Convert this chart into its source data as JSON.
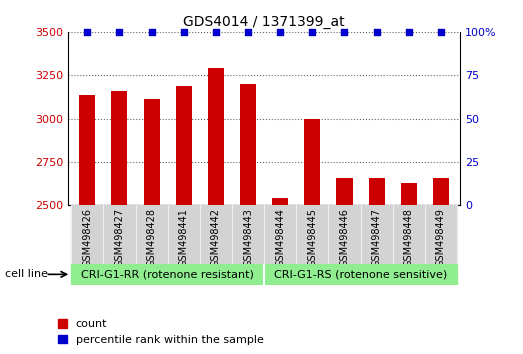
{
  "title": "GDS4014 / 1371399_at",
  "samples": [
    "GSM498426",
    "GSM498427",
    "GSM498428",
    "GSM498441",
    "GSM498442",
    "GSM498443",
    "GSM498444",
    "GSM498445",
    "GSM498446",
    "GSM498447",
    "GSM498448",
    "GSM498449"
  ],
  "counts": [
    3135,
    3160,
    3115,
    3190,
    3290,
    3200,
    2545,
    2995,
    2660,
    2660,
    2630,
    2660
  ],
  "group_labels": [
    "CRI-G1-RR (rotenone resistant)",
    "CRI-G1-RS (rotenone sensitive)"
  ],
  "group_boundary": 6,
  "bar_color": "#CC0000",
  "percentile_color": "#0000CC",
  "group_color": "#90EE90",
  "tick_bg_color": "#D3D3D3",
  "ylim_left": [
    2500,
    3500
  ],
  "ylim_right": [
    0,
    100
  ],
  "yticks_left": [
    2500,
    2750,
    3000,
    3250,
    3500
  ],
  "yticks_right": [
    0,
    25,
    50,
    75,
    100
  ],
  "cell_line_label": "cell line",
  "legend_count_label": "count",
  "legend_percentile_label": "percentile rank within the sample",
  "bar_width": 0.5
}
